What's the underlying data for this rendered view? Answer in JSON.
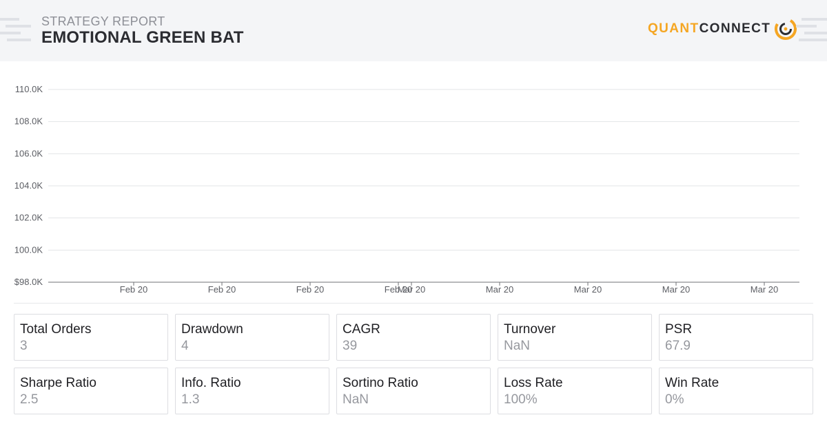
{
  "header": {
    "subtitle": "STRATEGY REPORT",
    "title": "EMOTIONAL GREEN BAT",
    "logo": {
      "part1": "QUANT",
      "part2": "CONNECT",
      "icon": "quantconnect-logo-icon"
    }
  },
  "colors": {
    "accent": "#f5a623",
    "text": "#1f1f23",
    "muted": "#96989e",
    "header_bg": "#f4f5f7"
  },
  "chart_data": {
    "type": "line",
    "title": "",
    "xlabel": "",
    "ylabel": "",
    "ylim": [
      98000,
      110000
    ],
    "yticks": [
      98000,
      100000,
      102000,
      104000,
      106000,
      108000,
      110000
    ],
    "ytick_labels": [
      "$98.0K",
      "100.0K",
      "102.0K",
      "104.0K",
      "106.0K",
      "108.0K",
      "110.0K"
    ],
    "xtick_labels": [
      "Feb 20",
      "Feb 20",
      "Feb 20",
      "Feb 20",
      "Mar 20",
      "Mar 20",
      "Mar 20",
      "Mar 20",
      "Mar 20"
    ],
    "grid": true,
    "series": []
  },
  "stats": [
    {
      "label": "Total Orders",
      "value": "3"
    },
    {
      "label": "Drawdown",
      "value": "4"
    },
    {
      "label": "CAGR",
      "value": "39"
    },
    {
      "label": "Turnover",
      "value": "NaN"
    },
    {
      "label": "PSR",
      "value": "67.9"
    },
    {
      "label": "Sharpe Ratio",
      "value": "2.5"
    },
    {
      "label": "Info. Ratio",
      "value": "1.3"
    },
    {
      "label": "Sortino Ratio",
      "value": "NaN"
    },
    {
      "label": "Loss Rate",
      "value": "100%"
    },
    {
      "label": "Win Rate",
      "value": "0%"
    }
  ]
}
